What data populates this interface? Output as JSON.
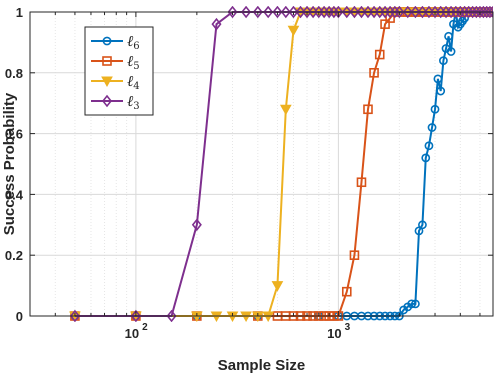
{
  "chart_data": {
    "type": "line",
    "xlabel": "Sample Size",
    "ylabel": "Success Probability",
    "xscale": "log",
    "xlim": [
      30,
      5800
    ],
    "ylim": [
      0,
      1
    ],
    "x_ticks": [
      {
        "value": 100,
        "base": "10",
        "exp": "2"
      },
      {
        "value": 1000,
        "base": "10",
        "exp": "3"
      }
    ],
    "y_ticks": [
      {
        "value": 0,
        "label": "0"
      },
      {
        "value": 0.2,
        "label": "0.2"
      },
      {
        "value": 0.4,
        "label": "0.4"
      },
      {
        "value": 0.6,
        "label": "0.6"
      },
      {
        "value": 0.8,
        "label": "0.8"
      },
      {
        "value": 1,
        "label": "1"
      }
    ],
    "grid": true,
    "legend_position": "top-left",
    "series": [
      {
        "name": "ℓ6",
        "name_base": "ℓ",
        "name_sub": "6",
        "color": "#0072BD",
        "marker": "circle",
        "x": [
          50,
          100,
          200,
          400,
          800,
          1000,
          1100,
          1200,
          1300,
          1400,
          1500,
          1600,
          1700,
          1800,
          1900,
          2000,
          2100,
          2200,
          2300,
          2400,
          2500,
          2600,
          2700,
          2800,
          2900,
          3000,
          3100,
          3200,
          3300,
          3400,
          3500,
          3600,
          3700,
          3800,
          3900,
          4000,
          4100,
          4200,
          4300,
          4400,
          4500,
          4600,
          4700,
          4800,
          4900,
          5000,
          5200,
          5400,
          5600,
          5800
        ],
        "y": [
          0,
          0,
          0,
          0,
          0,
          0,
          0,
          0,
          0,
          0,
          0,
          0,
          0,
          0,
          0,
          0,
          0.02,
          0.03,
          0.04,
          0.04,
          0.28,
          0.3,
          0.52,
          0.56,
          0.62,
          0.68,
          0.78,
          0.74,
          0.84,
          0.88,
          0.92,
          0.87,
          0.96,
          1.0,
          0.95,
          0.96,
          0.97,
          0.98,
          1.0,
          1.0,
          1.0,
          1.0,
          1.0,
          1.0,
          1.0,
          1.0,
          1.0,
          1.0,
          1.0,
          1.0
        ]
      },
      {
        "name": "ℓ5",
        "name_base": "ℓ",
        "name_sub": "5",
        "color": "#D95319",
        "marker": "square",
        "x": [
          50,
          100,
          200,
          400,
          500,
          550,
          600,
          650,
          700,
          750,
          800,
          850,
          900,
          950,
          1000,
          1100,
          1200,
          1300,
          1400,
          1500,
          1600,
          1700,
          1800,
          1900,
          2000,
          2100,
          2200,
          2300,
          2400,
          2500,
          2600,
          2800,
          3000,
          3200,
          3400,
          3600,
          3800,
          4000,
          4200,
          4400,
          4600,
          4800,
          5000,
          5200,
          5400,
          5600,
          5800
        ],
        "y": [
          0,
          0,
          0,
          0,
          0,
          0,
          0,
          0,
          0,
          0,
          0,
          0,
          0,
          0,
          0,
          0.08,
          0.2,
          0.44,
          0.68,
          0.8,
          0.86,
          0.96,
          0.98,
          1.0,
          1.0,
          1.0,
          1.0,
          1.0,
          1.0,
          1.0,
          1.0,
          1.0,
          1.0,
          1.0,
          1.0,
          1.0,
          1.0,
          1.0,
          1.0,
          1.0,
          1.0,
          1.0,
          1.0,
          1.0,
          1.0,
          1.0,
          1.0
        ]
      },
      {
        "name": "ℓ4",
        "name_base": "ℓ",
        "name_sub": "4",
        "color": "#EDB120",
        "marker": "triangle-down",
        "x": [
          50,
          100,
          200,
          250,
          300,
          350,
          400,
          450,
          500,
          550,
          600,
          650,
          700,
          750,
          800,
          850,
          900,
          950,
          1000,
          1100,
          1200,
          1300,
          1400,
          1500,
          1600,
          1700,
          1800,
          1900,
          2000,
          2200,
          2400,
          2600,
          2800,
          3000,
          3200,
          3400,
          3600,
          3800,
          4000,
          4200,
          4400,
          4600,
          4800,
          5000,
          5200,
          5400,
          5600,
          5800
        ],
        "y": [
          0,
          0,
          0,
          0,
          0,
          0,
          0,
          0,
          0.1,
          0.68,
          0.94,
          1.0,
          1.0,
          1.0,
          1.0,
          1.0,
          1.0,
          1.0,
          1.0,
          1.0,
          1.0,
          1.0,
          1.0,
          1.0,
          1.0,
          1.0,
          1.0,
          1.0,
          1.0,
          1.0,
          1.0,
          1.0,
          1.0,
          1.0,
          1.0,
          1.0,
          1.0,
          1.0,
          1.0,
          1.0,
          1.0,
          1.0,
          1.0,
          1.0,
          1.0,
          1.0,
          1.0,
          1.0
        ]
      },
      {
        "name": "ℓ3",
        "name_base": "ℓ",
        "name_sub": "3",
        "color": "#7E2F8E",
        "marker": "diamond",
        "x": [
          50,
          100,
          150,
          200,
          250,
          300,
          350,
          400,
          450,
          500,
          550,
          600,
          650,
          700,
          750,
          800,
          850,
          900,
          950,
          1000,
          1100,
          1200,
          1300,
          1400,
          1500,
          1600,
          1700,
          1800,
          1900,
          2000,
          2200,
          2400,
          2600,
          2800,
          3000,
          3200,
          3400,
          3600,
          3800,
          4000,
          4200,
          4400,
          4600,
          4800,
          5000,
          5200,
          5400,
          5600,
          5800
        ],
        "y": [
          0,
          0,
          0,
          0.3,
          0.96,
          1.0,
          1.0,
          1.0,
          1.0,
          1.0,
          1.0,
          1.0,
          1.0,
          1.0,
          1.0,
          1.0,
          1.0,
          1.0,
          1.0,
          1.0,
          1.0,
          1.0,
          1.0,
          1.0,
          1.0,
          1.0,
          1.0,
          1.0,
          1.0,
          1.0,
          1.0,
          1.0,
          1.0,
          1.0,
          1.0,
          1.0,
          1.0,
          1.0,
          1.0,
          1.0,
          1.0,
          1.0,
          1.0,
          1.0,
          1.0,
          1.0,
          1.0,
          1.0,
          1.0
        ]
      }
    ]
  }
}
